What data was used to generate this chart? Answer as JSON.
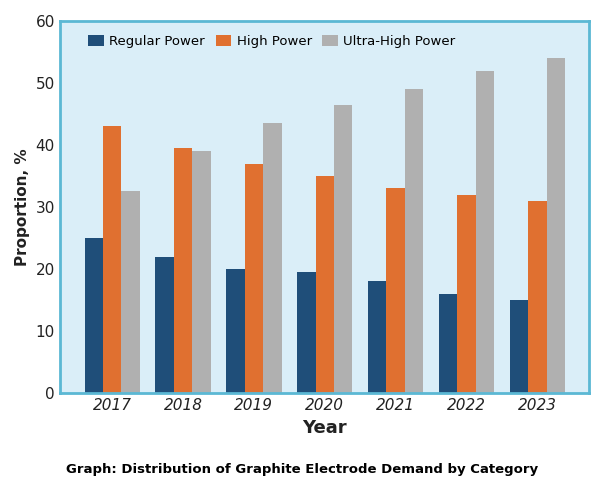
{
  "years": [
    2017,
    2018,
    2019,
    2020,
    2021,
    2022,
    2023
  ],
  "regular_power": [
    25,
    22,
    20,
    19.5,
    18,
    16,
    15
  ],
  "high_power": [
    43,
    39.5,
    37,
    35,
    33,
    32,
    31
  ],
  "ultra_high_power": [
    32.5,
    39,
    43.5,
    46.5,
    49,
    52,
    54
  ],
  "colors": {
    "regular": "#1f4e79",
    "high": "#e07030",
    "ultra_high": "#b0b0b0"
  },
  "ylabel": "Proportion, %",
  "xlabel": "Year",
  "ylim": [
    0,
    60
  ],
  "yticks": [
    0,
    10,
    20,
    30,
    40,
    50,
    60
  ],
  "legend_labels": [
    "Regular Power",
    "High Power",
    "Ultra-High Power"
  ],
  "background_color": "#daeef8",
  "caption": "Graph: Distribution of Graphite Electrode Demand by Category",
  "bar_width": 0.26
}
